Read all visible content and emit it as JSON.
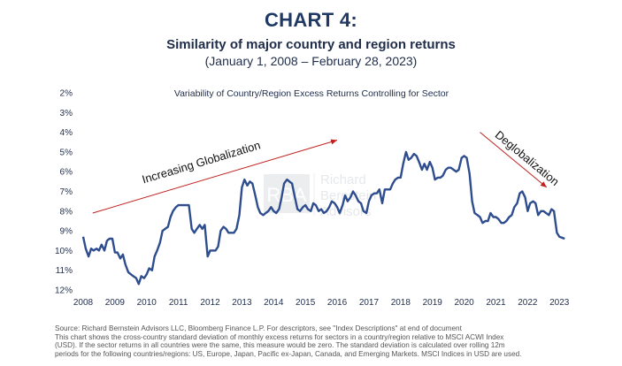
{
  "header": {
    "title": "CHART 4:",
    "subtitle": "Similarity of major country and region returns",
    "date_range": "(January 1, 2008 – February 28, 2023)"
  },
  "footer": {
    "source": "Source:   Richard Bernstein Advisors LLC, Bloomberg Finance L.P. For descriptors, see \"Index Descriptions\" at end of document",
    "note_line1": "This chart shows the cross-country standard deviation of monthly excess returns for sectors in a country/region relative to MSCI ACWI Index",
    "note_line2": "(USD). If the sector returns in all countries were the same, this measure would be zero. The standard deviation is calculated over rolling 12m",
    "note_line3": "periods for the following countries/regions: US, Europe, Japan, Pacific ex-Japan, Canada, and Emerging Markets. MSCI Indices in USD are used."
  },
  "watermark": {
    "logo_letters": "RBA",
    "line1": "Richard",
    "line2": "Bernstein",
    "line3": "Advisors"
  },
  "chart_data": {
    "type": "line",
    "title": "Variability of Country/Region Excess Returns Controlling for Sector",
    "xlabel": "",
    "ylabel": "",
    "y_inverted": true,
    "ylim": [
      2,
      12
    ],
    "xlim": [
      2008,
      2023.3
    ],
    "y_ticks": [
      "2%",
      "3%",
      "4%",
      "5%",
      "6%",
      "7%",
      "8%",
      "9%",
      "10%",
      "11%",
      "12%"
    ],
    "x_ticks": [
      "2008",
      "2009",
      "2010",
      "2011",
      "2012",
      "2013",
      "2014",
      "2015",
      "2016",
      "2017",
      "2018",
      "2019",
      "2020",
      "2021",
      "2022",
      "2023"
    ],
    "grid": false,
    "colors": {
      "series": "#2e4d8f",
      "annotation": "#c0201f"
    },
    "annotations": [
      {
        "text": "Increasing Globalization",
        "arrow_from": [
          2008.3,
          8.1
        ],
        "arrow_to": [
          2016.0,
          4.4
        ]
      },
      {
        "text": "Deglobalization",
        "arrow_from": [
          2020.5,
          4.0
        ],
        "arrow_to": [
          2022.6,
          6.8
        ]
      }
    ],
    "series": [
      {
        "values": [
          [
            2008.0,
            9.3
          ],
          [
            2008.08,
            9.9
          ],
          [
            2008.17,
            10.3
          ],
          [
            2008.25,
            9.9
          ],
          [
            2008.33,
            10.0
          ],
          [
            2008.42,
            9.9
          ],
          [
            2008.5,
            10.0
          ],
          [
            2008.58,
            9.7
          ],
          [
            2008.67,
            10.0
          ],
          [
            2008.75,
            9.5
          ],
          [
            2008.83,
            9.4
          ],
          [
            2008.92,
            9.4
          ],
          [
            2009.0,
            10.1
          ],
          [
            2009.08,
            10.1
          ],
          [
            2009.17,
            10.4
          ],
          [
            2009.25,
            10.2
          ],
          [
            2009.33,
            10.7
          ],
          [
            2009.42,
            11.1
          ],
          [
            2009.5,
            11.2
          ],
          [
            2009.58,
            11.3
          ],
          [
            2009.67,
            11.4
          ],
          [
            2009.75,
            11.7
          ],
          [
            2009.83,
            11.3
          ],
          [
            2009.92,
            11.4
          ],
          [
            2010.0,
            11.2
          ],
          [
            2010.08,
            10.9
          ],
          [
            2010.17,
            11.0
          ],
          [
            2010.25,
            10.3
          ],
          [
            2010.33,
            10.0
          ],
          [
            2010.42,
            9.6
          ],
          [
            2010.5,
            9.0
          ],
          [
            2010.58,
            8.9
          ],
          [
            2010.67,
            8.8
          ],
          [
            2010.75,
            8.3
          ],
          [
            2010.83,
            8.0
          ],
          [
            2010.92,
            7.8
          ],
          [
            2011.0,
            7.7
          ],
          [
            2011.17,
            7.7
          ],
          [
            2011.33,
            7.7
          ],
          [
            2011.42,
            8.9
          ],
          [
            2011.5,
            9.1
          ],
          [
            2011.58,
            8.9
          ],
          [
            2011.67,
            8.7
          ],
          [
            2011.75,
            8.9
          ],
          [
            2011.83,
            8.7
          ],
          [
            2011.92,
            10.3
          ],
          [
            2012.0,
            10.0
          ],
          [
            2012.08,
            10.0
          ],
          [
            2012.17,
            10.0
          ],
          [
            2012.25,
            9.8
          ],
          [
            2012.33,
            9.0
          ],
          [
            2012.42,
            8.8
          ],
          [
            2012.5,
            8.9
          ],
          [
            2012.58,
            9.1
          ],
          [
            2012.67,
            9.1
          ],
          [
            2012.75,
            9.1
          ],
          [
            2012.83,
            8.9
          ],
          [
            2012.92,
            8.2
          ],
          [
            2013.0,
            6.8
          ],
          [
            2013.08,
            6.4
          ],
          [
            2013.17,
            6.7
          ],
          [
            2013.25,
            6.5
          ],
          [
            2013.33,
            6.6
          ],
          [
            2013.42,
            7.2
          ],
          [
            2013.5,
            7.8
          ],
          [
            2013.58,
            8.1
          ],
          [
            2013.67,
            8.2
          ],
          [
            2013.75,
            8.1
          ],
          [
            2013.83,
            8.0
          ],
          [
            2013.92,
            7.8
          ],
          [
            2014.0,
            8.0
          ],
          [
            2014.08,
            8.1
          ],
          [
            2014.17,
            7.9
          ],
          [
            2014.25,
            7.3
          ],
          [
            2014.33,
            6.6
          ],
          [
            2014.42,
            6.4
          ],
          [
            2014.5,
            6.5
          ],
          [
            2014.58,
            6.6
          ],
          [
            2014.67,
            7.3
          ],
          [
            2014.75,
            7.9
          ],
          [
            2014.83,
            8.0
          ],
          [
            2014.92,
            7.8
          ],
          [
            2015.0,
            7.7
          ],
          [
            2015.08,
            7.9
          ],
          [
            2015.17,
            8.0
          ],
          [
            2015.25,
            7.6
          ],
          [
            2015.33,
            7.7
          ],
          [
            2015.42,
            8.0
          ],
          [
            2015.5,
            7.9
          ],
          [
            2015.58,
            8.1
          ],
          [
            2015.67,
            8.0
          ],
          [
            2015.75,
            7.8
          ],
          [
            2015.83,
            7.5
          ],
          [
            2015.92,
            7.6
          ],
          [
            2016.0,
            7.8
          ],
          [
            2016.08,
            8.1
          ],
          [
            2016.17,
            7.7
          ],
          [
            2016.25,
            7.2
          ],
          [
            2016.33,
            7.5
          ],
          [
            2016.42,
            7.3
          ],
          [
            2016.5,
            7.0
          ],
          [
            2016.58,
            7.2
          ],
          [
            2016.67,
            7.5
          ],
          [
            2016.75,
            7.6
          ],
          [
            2016.83,
            8.0
          ],
          [
            2016.92,
            8.1
          ],
          [
            2017.0,
            7.5
          ],
          [
            2017.08,
            7.2
          ],
          [
            2017.17,
            7.1
          ],
          [
            2017.25,
            7.1
          ],
          [
            2017.33,
            6.9
          ],
          [
            2017.42,
            7.6
          ],
          [
            2017.5,
            6.9
          ],
          [
            2017.58,
            6.9
          ],
          [
            2017.67,
            6.9
          ],
          [
            2017.75,
            6.6
          ],
          [
            2017.83,
            6.4
          ],
          [
            2017.92,
            6.3
          ],
          [
            2018.0,
            6.3
          ],
          [
            2018.08,
            5.6
          ],
          [
            2018.17,
            5.0
          ],
          [
            2018.25,
            5.4
          ],
          [
            2018.33,
            5.3
          ],
          [
            2018.42,
            5.1
          ],
          [
            2018.5,
            5.2
          ],
          [
            2018.58,
            5.5
          ],
          [
            2018.67,
            5.9
          ],
          [
            2018.75,
            5.6
          ],
          [
            2018.83,
            5.9
          ],
          [
            2018.92,
            5.5
          ],
          [
            2019.0,
            5.8
          ],
          [
            2019.08,
            6.4
          ],
          [
            2019.17,
            6.3
          ],
          [
            2019.25,
            6.3
          ],
          [
            2019.33,
            6.2
          ],
          [
            2019.42,
            5.9
          ],
          [
            2019.5,
            5.8
          ],
          [
            2019.58,
            5.8
          ],
          [
            2019.67,
            5.9
          ],
          [
            2019.75,
            6.0
          ],
          [
            2019.83,
            5.9
          ],
          [
            2019.92,
            5.3
          ],
          [
            2020.0,
            5.2
          ],
          [
            2020.08,
            5.3
          ],
          [
            2020.17,
            6.1
          ],
          [
            2020.25,
            7.5
          ],
          [
            2020.33,
            8.1
          ],
          [
            2020.42,
            8.2
          ],
          [
            2020.5,
            8.3
          ],
          [
            2020.58,
            8.6
          ],
          [
            2020.67,
            8.5
          ],
          [
            2020.75,
            8.5
          ],
          [
            2020.83,
            8.1
          ],
          [
            2020.92,
            8.3
          ],
          [
            2021.0,
            8.3
          ],
          [
            2021.08,
            8.4
          ],
          [
            2021.17,
            8.6
          ],
          [
            2021.25,
            8.6
          ],
          [
            2021.33,
            8.5
          ],
          [
            2021.42,
            8.3
          ],
          [
            2021.5,
            8.2
          ],
          [
            2021.58,
            7.8
          ],
          [
            2021.67,
            7.6
          ],
          [
            2021.75,
            7.1
          ],
          [
            2021.83,
            7.0
          ],
          [
            2021.92,
            7.3
          ],
          [
            2022.0,
            8.0
          ],
          [
            2022.08,
            7.6
          ],
          [
            2022.17,
            7.5
          ],
          [
            2022.25,
            7.6
          ],
          [
            2022.33,
            8.2
          ],
          [
            2022.42,
            8.0
          ],
          [
            2022.5,
            8.0
          ],
          [
            2022.58,
            8.1
          ],
          [
            2022.67,
            8.2
          ],
          [
            2022.75,
            7.9
          ],
          [
            2022.83,
            8.0
          ],
          [
            2022.92,
            9.1
          ],
          [
            2023.0,
            9.3
          ],
          [
            2023.17,
            9.4
          ]
        ]
      }
    ]
  }
}
